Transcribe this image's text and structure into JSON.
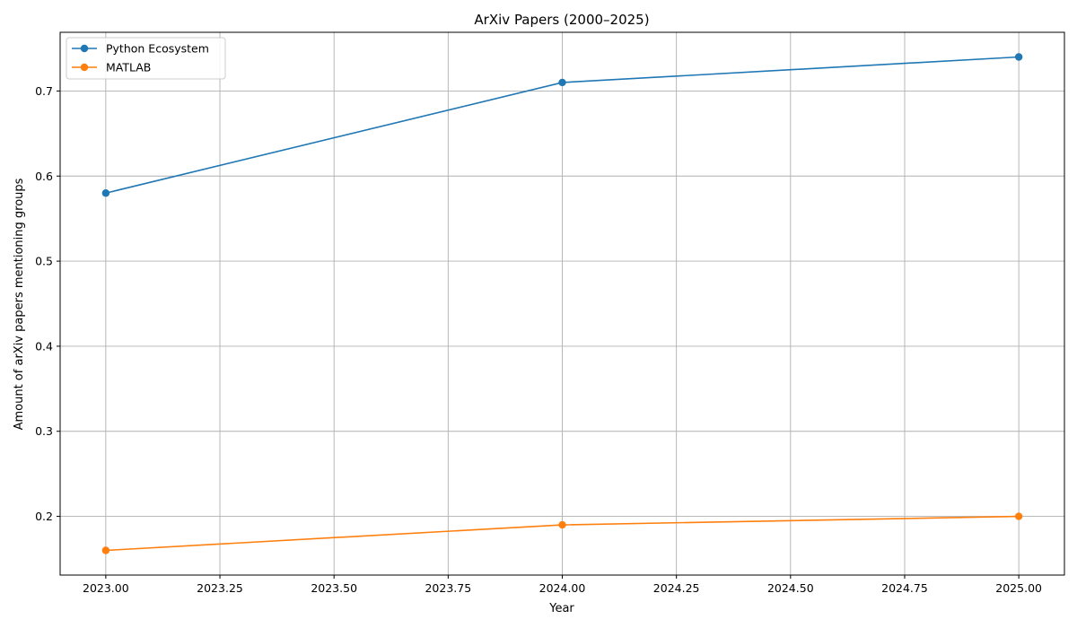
{
  "chart_data": {
    "type": "line",
    "title": "ArXiv Papers (2000–2025)",
    "xlabel": "Year",
    "ylabel": "Amount of arXiv papers mentioning groups",
    "xlim": [
      2022.9,
      2025.1
    ],
    "ylim": [
      0.131,
      0.769
    ],
    "x_ticks": [
      2023.0,
      2023.25,
      2023.5,
      2023.75,
      2024.0,
      2024.25,
      2024.5,
      2024.75,
      2025.0
    ],
    "x_tick_labels": [
      "2023.00",
      "2023.25",
      "2023.50",
      "2023.75",
      "2024.00",
      "2024.25",
      "2024.50",
      "2024.75",
      "2025.00"
    ],
    "y_ticks": [
      0.2,
      0.3,
      0.4,
      0.5,
      0.6,
      0.7
    ],
    "y_tick_labels": [
      "0.2",
      "0.3",
      "0.4",
      "0.5",
      "0.6",
      "0.7"
    ],
    "grid": true,
    "legend_position": "top-left",
    "x": [
      2023,
      2024,
      2025
    ],
    "series": [
      {
        "name": "Python Ecosystem",
        "color": "#1f77b4",
        "values": [
          0.58,
          0.71,
          0.74
        ]
      },
      {
        "name": "MATLAB",
        "color": "#ff7f0e",
        "values": [
          0.16,
          0.19,
          0.2
        ]
      }
    ]
  }
}
